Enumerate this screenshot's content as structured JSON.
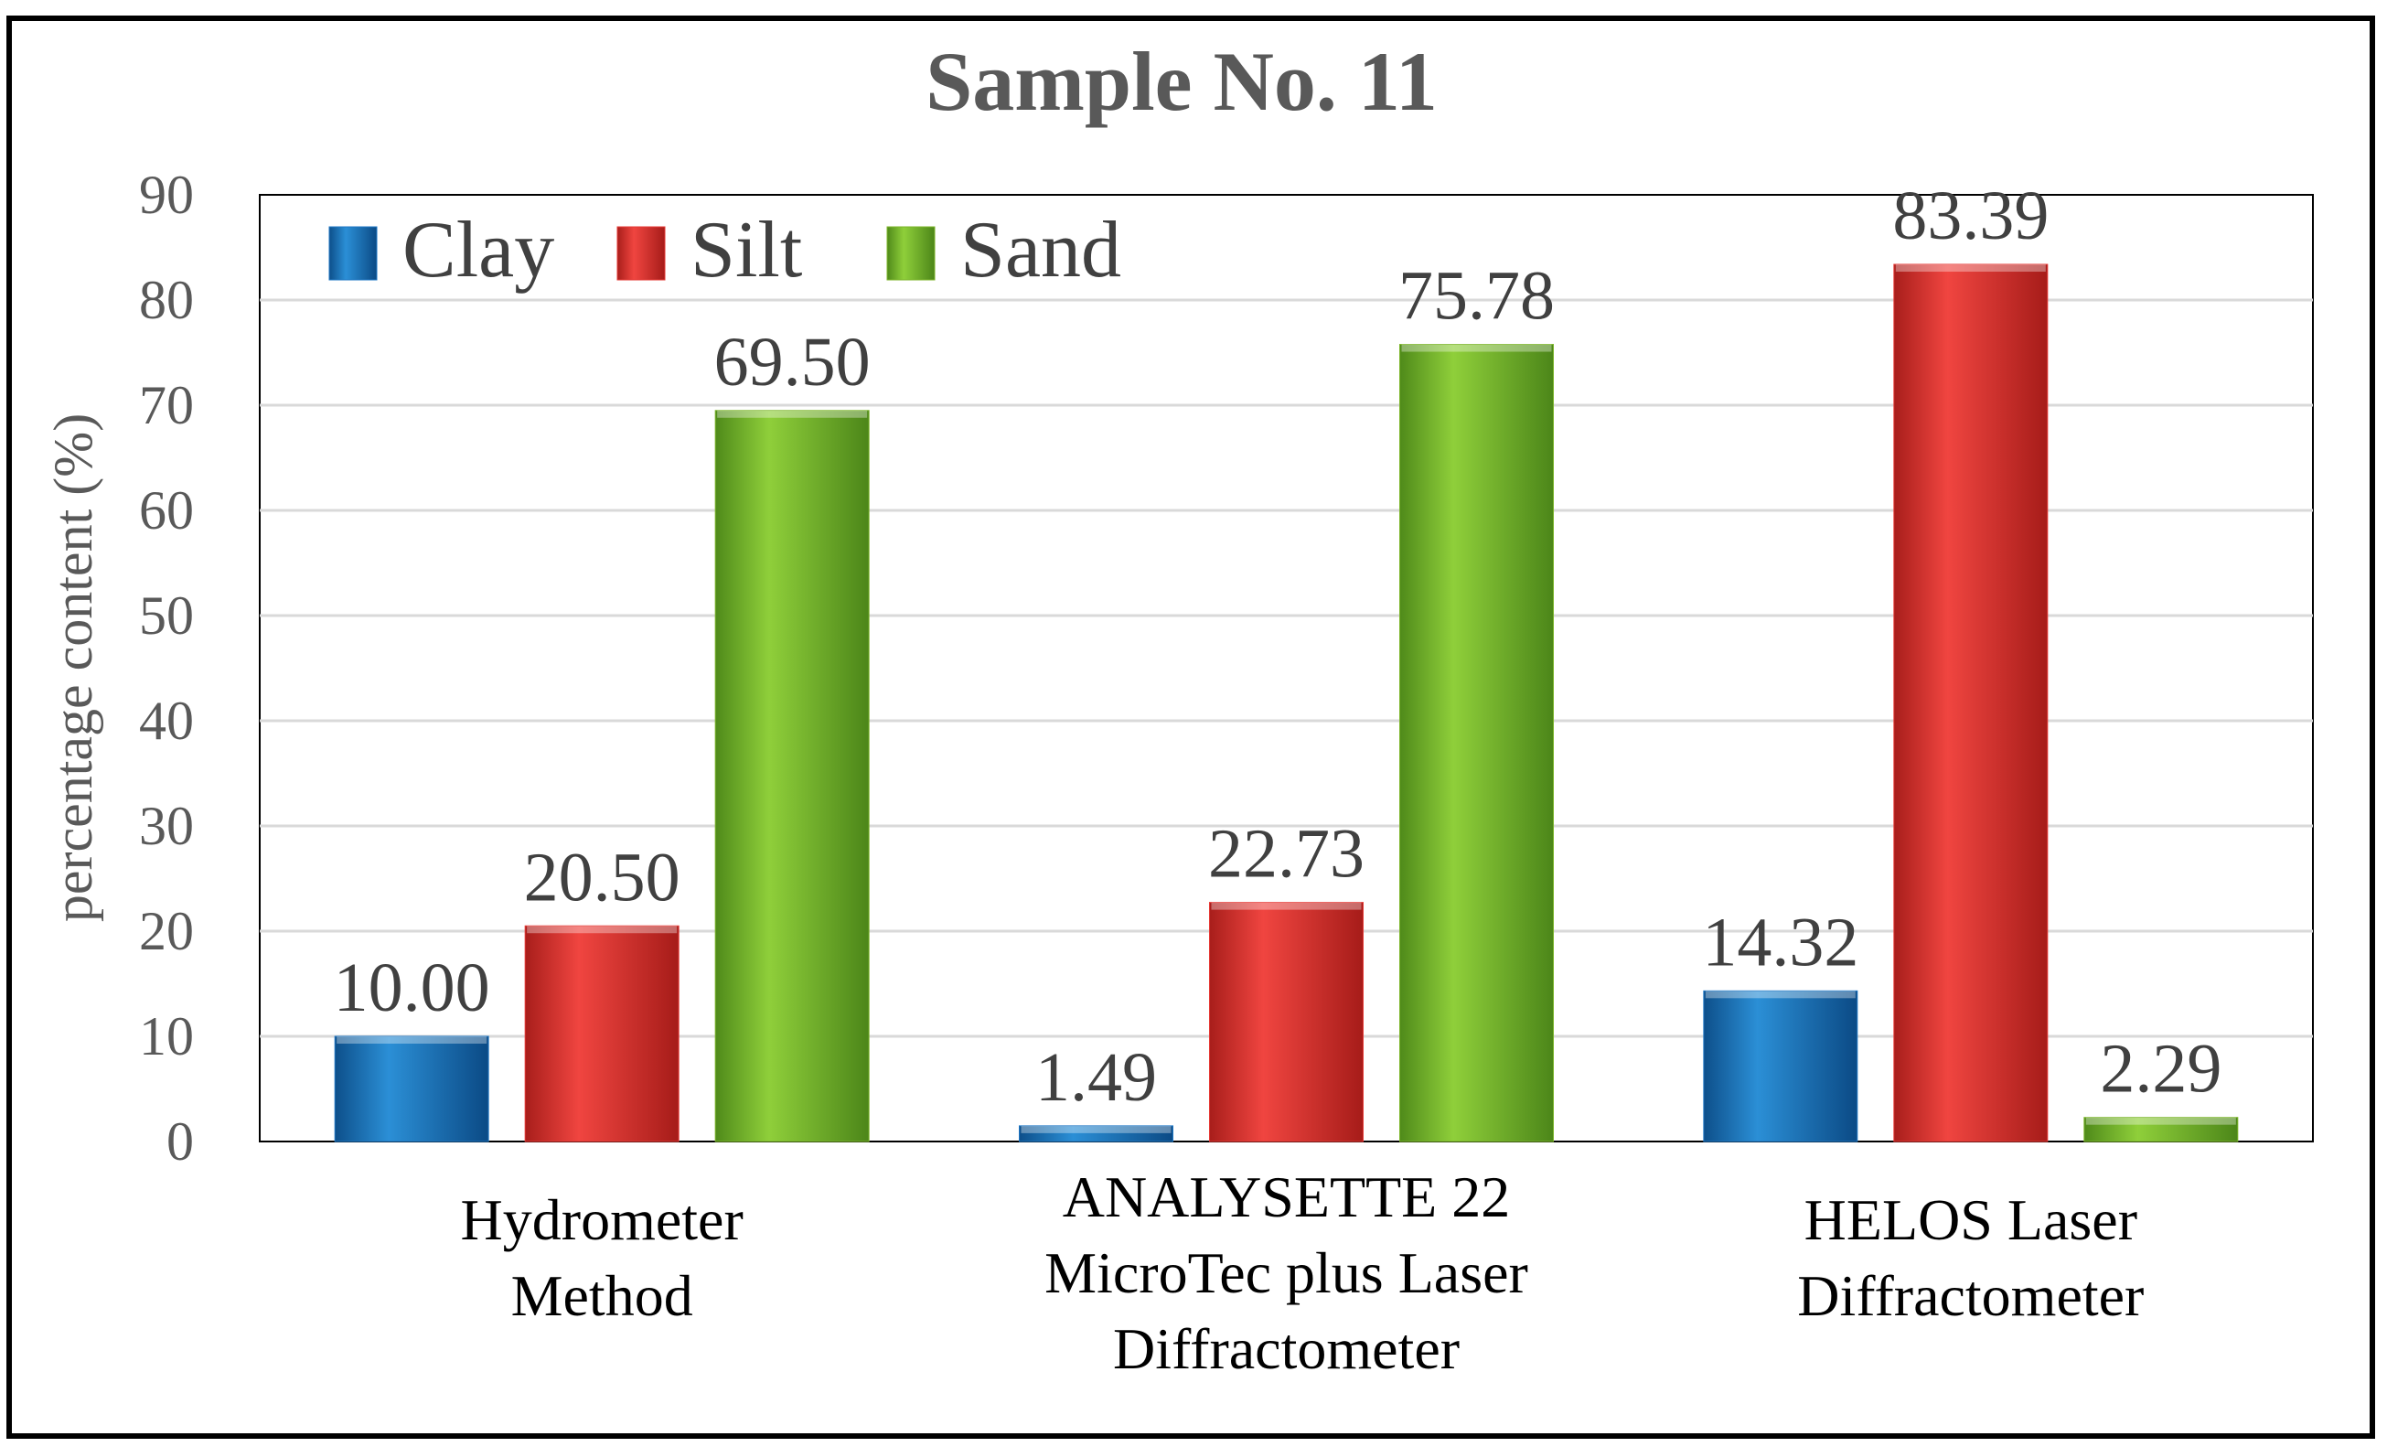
{
  "chart_data": {
    "type": "bar",
    "title": "Sample No. 11",
    "xlabel": "",
    "ylabel": "percentage content (%)",
    "ylim": [
      0,
      90
    ],
    "yticks": [
      0,
      10,
      20,
      30,
      40,
      50,
      60,
      70,
      80,
      90
    ],
    "grid": true,
    "legend_position": "top-left",
    "categories": [
      [
        "Hydrometer",
        "Method"
      ],
      [
        "ANALYSETTE 22",
        "MicroTec plus Laser",
        "Diffractometer"
      ],
      [
        "HELOS Laser",
        "Diffractometer"
      ]
    ],
    "series": [
      {
        "name": "Clay",
        "values": [
          10.0,
          1.49,
          14.32
        ],
        "labels": [
          "10.00",
          "1.49",
          "14.32"
        ],
        "color": "#1f77c4"
      },
      {
        "name": "Silt",
        "values": [
          20.5,
          22.73,
          83.39
        ],
        "labels": [
          "20.50",
          "22.73",
          "83.39"
        ],
        "color": "#e53935"
      },
      {
        "name": "Sand",
        "values": [
          69.5,
          75.78,
          2.29
        ],
        "labels": [
          "69.50",
          "75.78",
          "2.29"
        ],
        "color": "#7cb52a"
      }
    ]
  }
}
